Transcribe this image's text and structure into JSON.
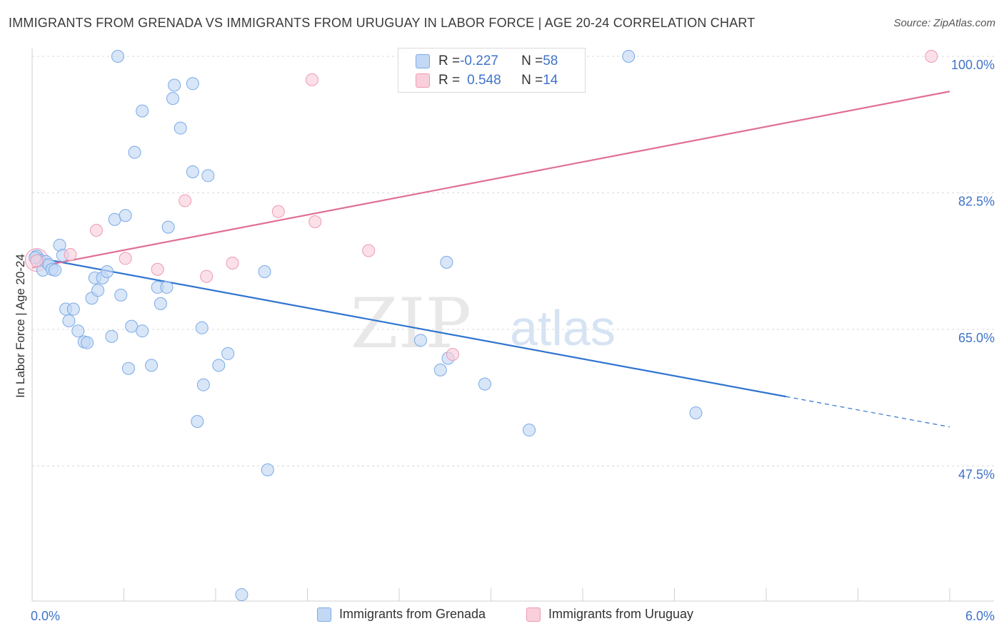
{
  "header": {
    "title": "IMMIGRANTS FROM GRENADA VS IMMIGRANTS FROM URUGUAY IN LABOR FORCE | AGE 20-24 CORRELATION CHART",
    "source": "Source: ZipAtlas.com"
  },
  "watermark": {
    "zip": "ZIP",
    "atlas": "atlas"
  },
  "stats": {
    "grenada": {
      "r_label": "R = ",
      "r_value": "-0.227",
      "n_label": "N = ",
      "n_value": "58"
    },
    "uruguay": {
      "r_label": "R = ",
      "r_value": "0.548",
      "n_label": "N = ",
      "n_value": "14"
    }
  },
  "colors": {
    "grenada_fill": "#c3d8f5",
    "grenada_stroke": "#7aaae6",
    "grenada_line": "#2f74d0",
    "uruguay_fill": "#f9cfdc",
    "uruguay_stroke": "#ee9ab5",
    "uruguay_line": "#e06e98",
    "axis_label": "#3f73c9",
    "grid": "#d8d8d8"
  },
  "chart_data": {
    "type": "scatter",
    "title": "IMMIGRANTS FROM GRENADA VS IMMIGRANTS FROM URUGUAY IN LABOR FORCE | AGE 20-24 CORRELATION CHART",
    "xlabel": "",
    "ylabel": "In Labor Force | Age 20-24",
    "xlim": [
      0.0,
      6.0
    ],
    "ylim": [
      31.0,
      102.0
    ],
    "x_tick_labels": [
      "0.0%",
      "6.0%"
    ],
    "y_ticks": [
      100.0,
      82.5,
      65.0,
      47.5
    ],
    "y_tick_labels": [
      "100.0%",
      "82.5%",
      "65.0%",
      "47.5%"
    ],
    "grid": "horizontal dashed",
    "legend_position": "bottom",
    "series": [
      {
        "name": "Immigrants from Grenada",
        "r": -0.227,
        "n": 58,
        "trend": {
          "x": [
            0.0,
            6.0
          ],
          "y": [
            74.3,
            52.5
          ],
          "solid_until_x": 4.93
        },
        "points": [
          [
            0.03,
            74.4
          ],
          [
            0.05,
            73.9
          ],
          [
            0.07,
            72.6
          ],
          [
            0.09,
            73.7
          ],
          [
            0.11,
            73.3
          ],
          [
            0.13,
            72.7
          ],
          [
            0.15,
            72.6
          ],
          [
            0.18,
            75.8
          ],
          [
            0.2,
            74.5
          ],
          [
            0.22,
            67.6
          ],
          [
            0.24,
            66.1
          ],
          [
            0.27,
            67.6
          ],
          [
            0.3,
            64.8
          ],
          [
            0.34,
            63.4
          ],
          [
            0.36,
            63.3
          ],
          [
            0.39,
            69.0
          ],
          [
            0.41,
            71.6
          ],
          [
            0.43,
            70.0
          ],
          [
            0.46,
            71.6
          ],
          [
            0.49,
            72.4
          ],
          [
            0.52,
            64.1
          ],
          [
            0.54,
            79.1
          ],
          [
            0.56,
            100.0
          ],
          [
            0.58,
            69.4
          ],
          [
            0.61,
            79.6
          ],
          [
            0.63,
            60.0
          ],
          [
            0.65,
            65.4
          ],
          [
            0.67,
            87.7
          ],
          [
            0.72,
            64.8
          ],
          [
            0.72,
            93.0
          ],
          [
            0.78,
            60.4
          ],
          [
            0.82,
            70.4
          ],
          [
            0.84,
            68.3
          ],
          [
            0.88,
            70.4
          ],
          [
            0.89,
            78.1
          ],
          [
            0.92,
            94.6
          ],
          [
            0.93,
            96.3
          ],
          [
            0.97,
            90.8
          ],
          [
            1.05,
            85.2
          ],
          [
            1.05,
            96.5
          ],
          [
            1.08,
            53.2
          ],
          [
            1.11,
            65.2
          ],
          [
            1.12,
            57.9
          ],
          [
            1.15,
            84.7
          ],
          [
            1.22,
            60.4
          ],
          [
            1.28,
            61.9
          ],
          [
            1.37,
            31.0
          ],
          [
            1.52,
            72.4
          ],
          [
            1.54,
            47.0
          ],
          [
            2.54,
            63.6
          ],
          [
            2.67,
            59.8
          ],
          [
            2.71,
            73.6
          ],
          [
            2.72,
            61.3
          ],
          [
            2.96,
            58.0
          ],
          [
            3.25,
            52.1
          ],
          [
            4.34,
            54.3
          ],
          [
            3.9,
            100.0
          ],
          [
            0.02,
            74.2
          ]
        ]
      },
      {
        "name": "Immigrants from Uruguay",
        "r": 0.548,
        "n": 14,
        "trend": {
          "x": [
            0.0,
            6.0
          ],
          "y": [
            72.9,
            95.5
          ]
        },
        "points": [
          [
            0.03,
            73.8
          ],
          [
            0.25,
            74.6
          ],
          [
            0.42,
            77.7
          ],
          [
            0.61,
            74.1
          ],
          [
            0.82,
            72.7
          ],
          [
            1.0,
            81.5
          ],
          [
            1.14,
            71.8
          ],
          [
            1.31,
            73.5
          ],
          [
            1.61,
            80.1
          ],
          [
            1.83,
            97.0
          ],
          [
            1.85,
            78.8
          ],
          [
            2.2,
            75.1
          ],
          [
            2.75,
            61.8
          ],
          [
            5.88,
            100.0
          ]
        ]
      }
    ]
  },
  "legend": {
    "grenada_label": "Immigrants from Grenada",
    "uruguay_label": "Immigrants from Uruguay"
  }
}
